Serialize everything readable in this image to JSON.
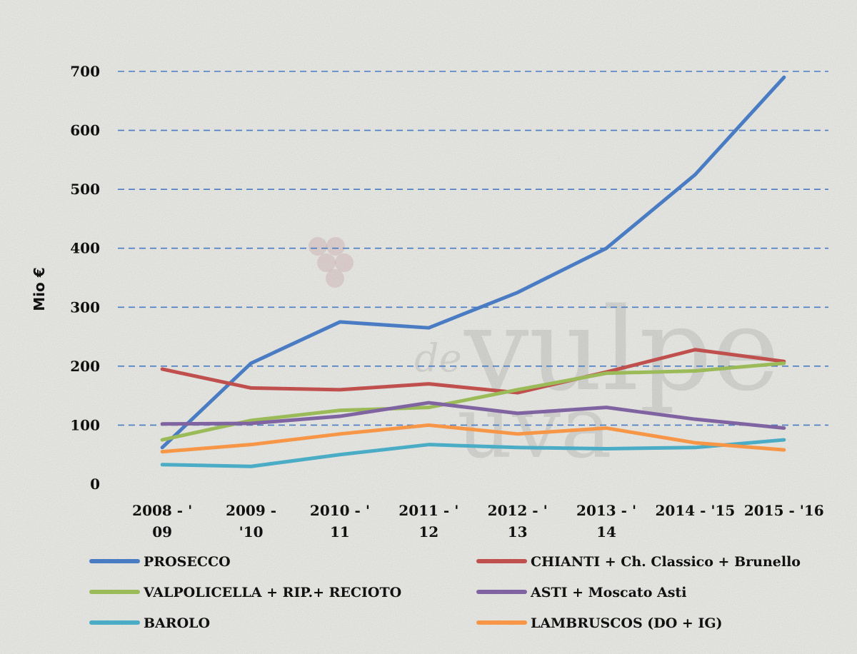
{
  "chart_data": {
    "type": "line",
    "title": "",
    "xlabel": "",
    "ylabel": "Mio €",
    "ylim": [
      0,
      700
    ],
    "yticks": [
      "0",
      "100",
      "200",
      "300",
      "400",
      "500",
      "600",
      "700"
    ],
    "grid": "horizontal dashed",
    "legend_position": "bottom",
    "categories": [
      [
        "2008 - '",
        "09"
      ],
      [
        "2009 -",
        "'10"
      ],
      [
        "2010  - '",
        "11"
      ],
      [
        "2011  - '",
        "12"
      ],
      [
        "2012  - '",
        "13"
      ],
      [
        "2013 - '",
        "14"
      ],
      [
        "2014 - '15",
        ""
      ],
      [
        "2015 - '16",
        ""
      ]
    ],
    "series": [
      {
        "name": "PROSECCO",
        "color": "#4a7cc4",
        "values": [
          62,
          205,
          275,
          265,
          325,
          400,
          525,
          690
        ]
      },
      {
        "name": "CHIANTI + Ch. Classico + Brunello",
        "color": "#c0504d",
        "values": [
          195,
          163,
          160,
          170,
          155,
          190,
          228,
          208
        ]
      },
      {
        "name": "VALPOLICELLA + RIP.+ RECIOTO",
        "color": "#9bbb59",
        "values": [
          75,
          108,
          125,
          130,
          160,
          188,
          192,
          205
        ]
      },
      {
        "name": "ASTI + Moscato Asti",
        "color": "#8064a2",
        "values": [
          102,
          103,
          115,
          138,
          120,
          130,
          110,
          95
        ]
      },
      {
        "name": "BAROLO",
        "color": "#4bacc6",
        "values": [
          33,
          30,
          50,
          67,
          62,
          60,
          62,
          75
        ]
      },
      {
        "name": "LAMBRUSCOS (DO + IG)",
        "color": "#f79646",
        "values": [
          55,
          67,
          85,
          100,
          85,
          95,
          70,
          58
        ]
      }
    ]
  }
}
